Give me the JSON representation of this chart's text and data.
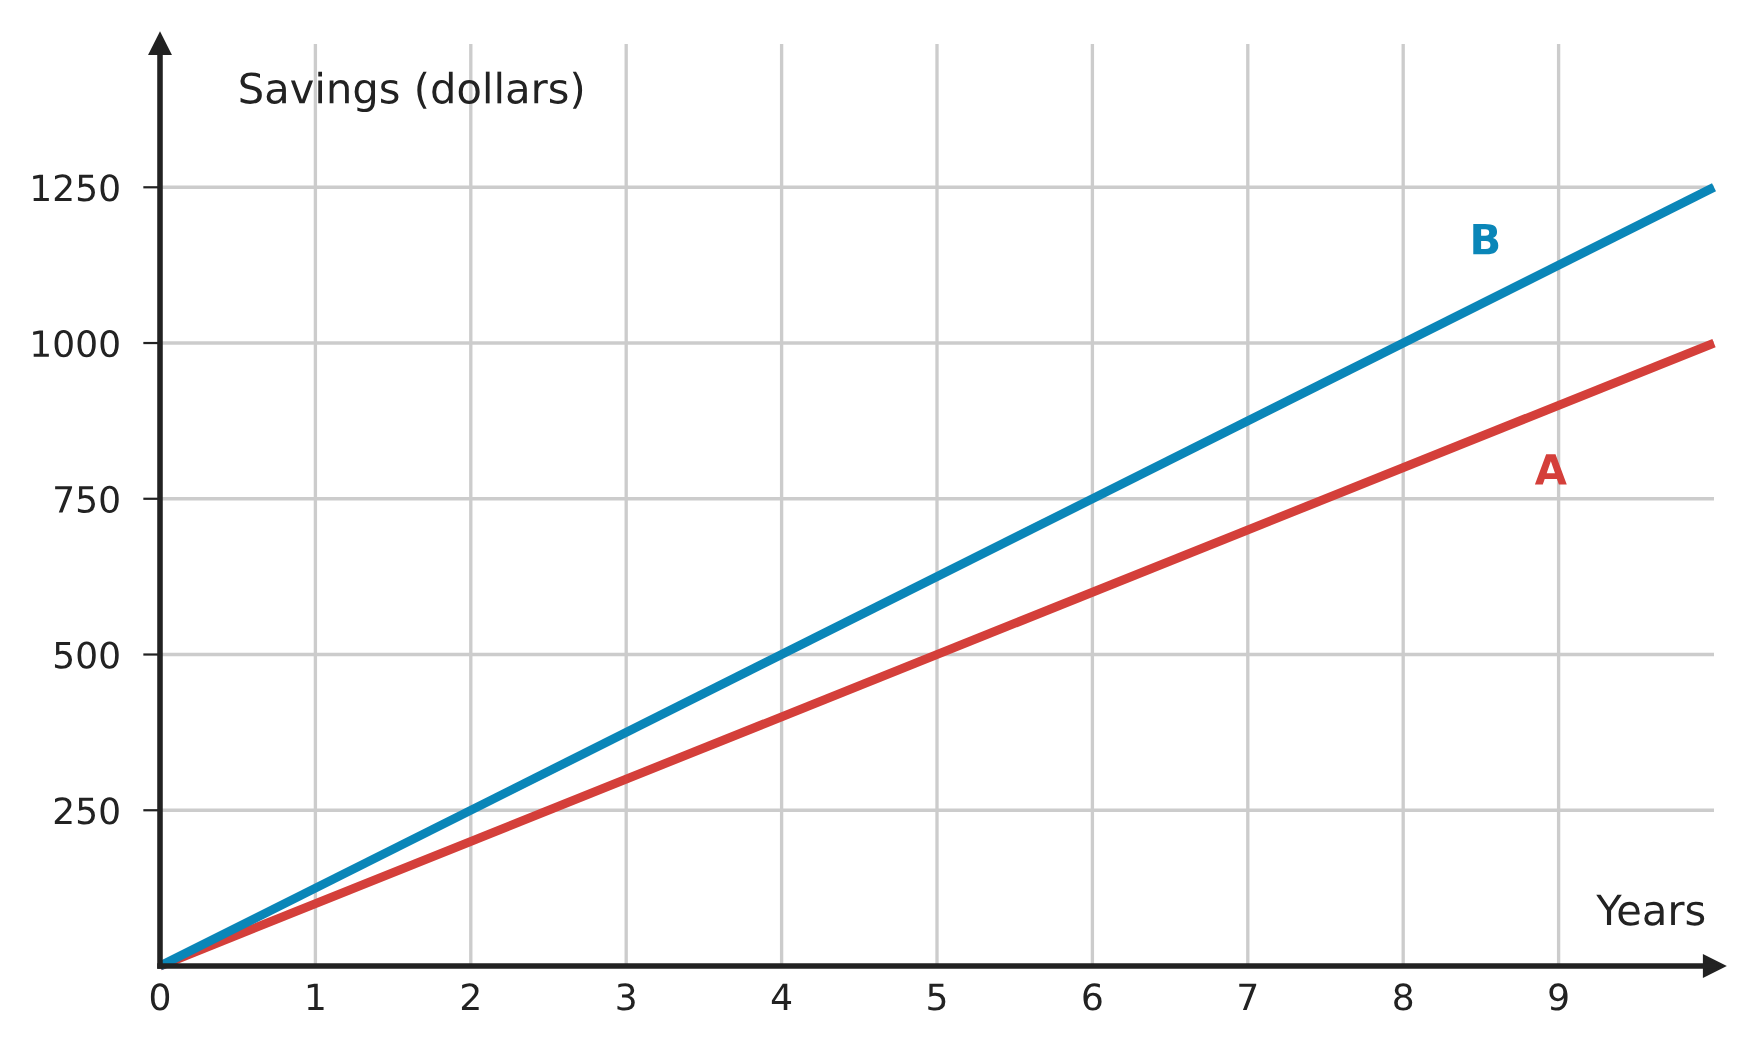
{
  "chart_data": {
    "type": "line",
    "xlabel": "Years",
    "ylabel": "Savings (dollars)",
    "x": [
      0,
      10
    ],
    "series": [
      {
        "name": "A",
        "color": "#d43f3a",
        "values": [
          0,
          1000
        ]
      },
      {
        "name": "B",
        "color": "#0a86b8",
        "values": [
          0,
          1250
        ]
      }
    ],
    "xlim": [
      0,
      10
    ],
    "ylim": [
      0,
      1480
    ],
    "xticks": [
      0,
      1,
      2,
      3,
      4,
      5,
      6,
      7,
      8,
      9
    ],
    "yticks": [
      250,
      500,
      750,
      1000,
      1250
    ],
    "grid": true,
    "marker": "none",
    "line_style": "solid"
  }
}
